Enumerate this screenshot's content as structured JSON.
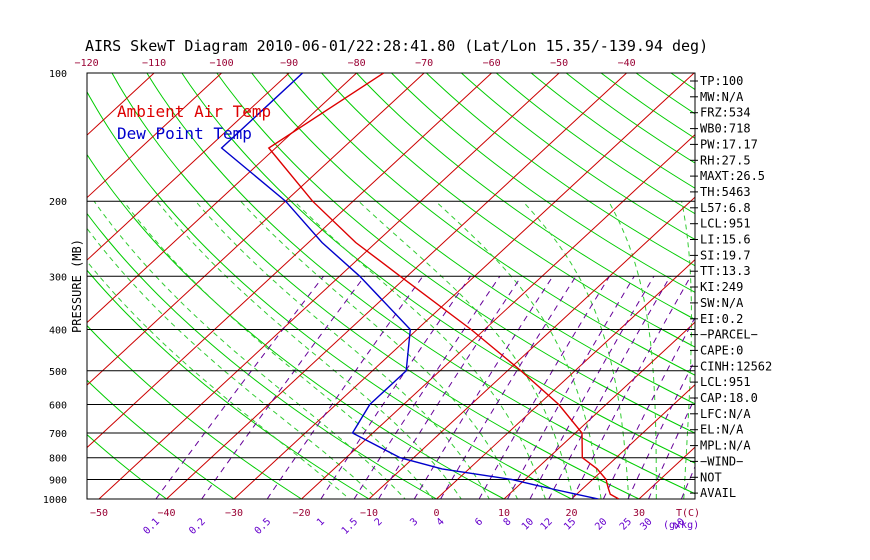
{
  "chart_data": {
    "type": "line",
    "title": "AIRS SkewT Diagram 2010-06-01/22:28:41.80 (Lat/Lon 15.35/-139.94 deg)",
    "ylabel": "PRESSURE (MB)",
    "xlabel": "T(C)",
    "mixing_ratio_label": "(g/kg)",
    "pressure_ticks": [
      "100",
      "200",
      "300",
      "400",
      "500",
      "600",
      "700",
      "800",
      "900",
      "1000"
    ],
    "bottom_temp_ticks": [
      "-50",
      "-40",
      "-30",
      "-20",
      "-10",
      "0",
      "10",
      "20",
      "30"
    ],
    "top_temp_ticks": [
      "-120",
      "-110",
      "-100",
      "-90",
      "-80",
      "-70",
      "-60",
      "-50",
      "-40"
    ],
    "mixing_ratio_ticks": [
      "0.1",
      "0.2",
      "0.5",
      "1",
      "1.5",
      "2",
      "3",
      "4",
      "6",
      "8",
      "10",
      "12",
      "15",
      "20",
      "25",
      "30",
      "40"
    ],
    "pressure_range_mb": [
      100,
      1000
    ],
    "grid": true,
    "legend": {
      "placement": "top-left",
      "entries": [
        {
          "label": "Ambient Air Temp",
          "color": "#dd0000"
        },
        {
          "label": "Dew Point Temp",
          "color": "#0000cc"
        }
      ]
    },
    "series": [
      {
        "name": "Ambient Air Temp",
        "color": "#dd0000",
        "points": [
          {
            "p": 100,
            "t": -76
          },
          {
            "p": 150,
            "t": -81
          },
          {
            "p": 200,
            "t": -66
          },
          {
            "p": 250,
            "t": -53
          },
          {
            "p": 300,
            "t": -41
          },
          {
            "p": 400,
            "t": -22
          },
          {
            "p": 500,
            "t": -8
          },
          {
            "p": 600,
            "t": 3
          },
          {
            "p": 700,
            "t": 11
          },
          {
            "p": 800,
            "t": 15
          },
          {
            "p": 850,
            "t": 19
          },
          {
            "p": 900,
            "t": 22
          },
          {
            "p": 925,
            "t": 23
          },
          {
            "p": 950,
            "t": 24
          },
          {
            "p": 975,
            "t": 25
          },
          {
            "p": 1000,
            "t": 27
          }
        ]
      },
      {
        "name": "Dew Point Temp",
        "color": "#0000cc",
        "points": [
          {
            "p": 100,
            "t": -88
          },
          {
            "p": 150,
            "t": -88
          },
          {
            "p": 200,
            "t": -70
          },
          {
            "p": 250,
            "t": -58
          },
          {
            "p": 300,
            "t": -47
          },
          {
            "p": 400,
            "t": -31
          },
          {
            "p": 500,
            "t": -25
          },
          {
            "p": 600,
            "t": -25
          },
          {
            "p": 700,
            "t": -23
          },
          {
            "p": 800,
            "t": -12
          },
          {
            "p": 850,
            "t": -4
          },
          {
            "p": 900,
            "t": 8
          },
          {
            "p": 925,
            "t": 12
          },
          {
            "p": 950,
            "t": 16
          },
          {
            "p": 975,
            "t": 20
          },
          {
            "p": 1000,
            "t": 24
          }
        ]
      }
    ],
    "indices": [
      "TP:100",
      "MW:N/A",
      "FRZ:534",
      "WB0:718",
      "PW:17.17",
      "RH:27.5",
      "MAXT:26.5",
      "TH:5463",
      "L57:6.8",
      "LCL:951",
      "LI:15.6",
      "SI:19.7",
      "TT:13.3",
      "KI:249",
      "SW:N/A",
      "EI:0.2",
      "−PARCEL−",
      "CAPE:0",
      "CINH:12562",
      "LCL:951",
      "CAP:18.0",
      "LFC:N/A",
      "EL:N/A",
      "MPL:N/A",
      "−WIND−",
      "NOT",
      "AVAIL"
    ]
  },
  "colors": {
    "isotherm": "#cc0000",
    "dry_adiabat": "#00cc00",
    "moist_adiabat": "#33cc33",
    "mixing_ratio": "#660099",
    "isobar": "#000000",
    "temp_tick_labels": "#990033",
    "mixing_ratio_labels": "#6600cc"
  }
}
